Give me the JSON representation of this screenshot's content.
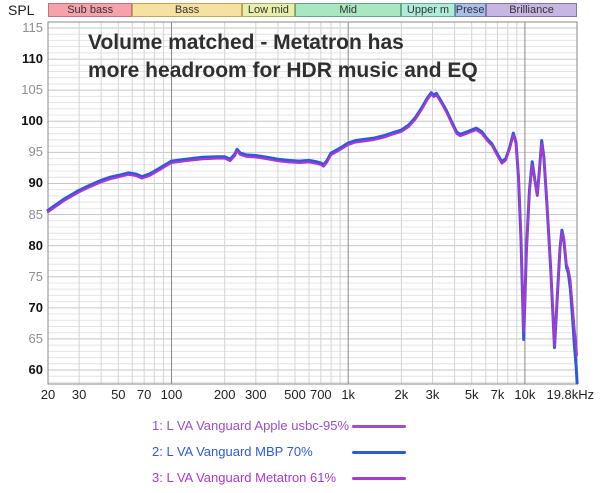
{
  "header": {
    "spl_label": "SPL"
  },
  "title": {
    "line1": "Volume matched - Metatron has",
    "line2": "more headroom for HDR music and EQ"
  },
  "bands": [
    {
      "label": "Sub bass",
      "from_hz": 20,
      "to_hz": 60,
      "fill": "#f6a2ab",
      "border": "#c2737c"
    },
    {
      "label": "Bass",
      "from_hz": 60,
      "to_hz": 250,
      "fill": "#f6e1a3",
      "border": "#c0a75e"
    },
    {
      "label": "Low mid",
      "from_hz": 250,
      "to_hz": 500,
      "fill": "#e8efad",
      "border": "#a6ad62"
    },
    {
      "label": "Mid",
      "from_hz": 500,
      "to_hz": 2000,
      "fill": "#a8e7c0",
      "border": "#61a87e"
    },
    {
      "label": "Upper m",
      "from_hz": 2000,
      "to_hz": 4000,
      "fill": "#aeecd9",
      "border": "#64ab90"
    },
    {
      "label": "Prese",
      "from_hz": 4000,
      "to_hz": 6000,
      "fill": "#a9bfea",
      "border": "#6c82bb"
    },
    {
      "label": "Brilliance",
      "from_hz": 6000,
      "to_hz": 19800,
      "fill": "#c6b6e2",
      "border": "#8673ae"
    }
  ],
  "axes": {
    "y_unit": "dB SPL",
    "y_major_ticks": [
      115,
      110,
      105,
      100,
      95,
      90,
      85,
      80,
      75,
      70,
      65,
      60
    ],
    "x_ticks": [
      {
        "label": "20",
        "f": 20
      },
      {
        "label": "30",
        "f": 30
      },
      {
        "label": "50",
        "f": 50
      },
      {
        "label": "70",
        "f": 70
      },
      {
        "label": "100",
        "f": 100
      },
      {
        "label": "200",
        "f": 200
      },
      {
        "label": "300",
        "f": 300
      },
      {
        "label": "500",
        "f": 500
      },
      {
        "label": "700",
        "f": 700
      },
      {
        "label": "1k",
        "f": 1000
      },
      {
        "label": "2k",
        "f": 2000
      },
      {
        "label": "3k",
        "f": 3000
      },
      {
        "label": "5k",
        "f": 5000
      },
      {
        "label": "7k",
        "f": 7000
      },
      {
        "label": "10k",
        "f": 10000
      },
      {
        "label": "19.8kHz",
        "f": 19800,
        "dx": -7
      }
    ]
  },
  "legend": {
    "items": [
      {
        "label": "1: L VA Vanguard Apple usbc-95%",
        "color": "#9c4ecb"
      },
      {
        "label": "2: L VA Vanguard MBP 70%",
        "color": "#2e5ad9"
      },
      {
        "label": "3: L VA Vanguard Metatron 61%",
        "color": "#aa39d4"
      }
    ]
  },
  "chart_data": {
    "type": "line",
    "x_axis": {
      "scale": "log",
      "min_hz": 20,
      "max_hz": 19800
    },
    "y_axis": {
      "label": "SPL",
      "min_db": 57.9,
      "max_db": 116,
      "major_step_db": 5,
      "minor_step_db": 1
    },
    "grid": "on",
    "legend_position": "bottom",
    "series": [
      {
        "name": "L VA Vanguard Apple usbc-95%",
        "color": "#9a43cd",
        "width": 2.1,
        "z": 2,
        "points": [
          [
            20,
            85.4
          ],
          [
            25,
            87.3
          ],
          [
            30,
            88.6
          ],
          [
            35,
            89.5
          ],
          [
            40,
            90.2
          ],
          [
            45,
            90.7
          ],
          [
            50,
            91.0
          ],
          [
            57,
            91.4
          ],
          [
            63,
            91.2
          ],
          [
            68,
            90.8
          ],
          [
            75,
            91.2
          ],
          [
            85,
            92.1
          ],
          [
            100,
            93.3
          ],
          [
            120,
            93.6
          ],
          [
            150,
            93.9
          ],
          [
            180,
            94.0
          ],
          [
            200,
            94.0
          ],
          [
            215,
            93.6
          ],
          [
            228,
            94.4
          ],
          [
            235,
            95.2
          ],
          [
            245,
            94.6
          ],
          [
            265,
            94.3
          ],
          [
            300,
            94.2
          ],
          [
            350,
            93.9
          ],
          [
            400,
            93.6
          ],
          [
            460,
            93.4
          ],
          [
            530,
            93.3
          ],
          [
            600,
            93.4
          ],
          [
            660,
            93.2
          ],
          [
            700,
            93.0
          ],
          [
            725,
            92.7
          ],
          [
            760,
            93.4
          ],
          [
            800,
            94.6
          ],
          [
            900,
            95.4
          ],
          [
            1000,
            96.2
          ],
          [
            1100,
            96.6
          ],
          [
            1250,
            96.8
          ],
          [
            1400,
            97.0
          ],
          [
            1600,
            97.4
          ],
          [
            1800,
            97.9
          ],
          [
            2000,
            98.3
          ],
          [
            2200,
            99.1
          ],
          [
            2400,
            100.3
          ],
          [
            2600,
            101.8
          ],
          [
            2800,
            103.4
          ],
          [
            2950,
            104.3
          ],
          [
            3050,
            103.9
          ],
          [
            3150,
            104.2
          ],
          [
            3350,
            103.0
          ],
          [
            3600,
            101.4
          ],
          [
            3850,
            99.6
          ],
          [
            4100,
            98.0
          ],
          [
            4300,
            97.6
          ],
          [
            4600,
            97.9
          ],
          [
            5000,
            98.3
          ],
          [
            5300,
            98.6
          ],
          [
            5700,
            98.0
          ],
          [
            6100,
            96.9
          ],
          [
            6500,
            96.1
          ],
          [
            7000,
            94.4
          ],
          [
            7400,
            93.2
          ],
          [
            7800,
            93.7
          ],
          [
            8200,
            95.5
          ],
          [
            8600,
            97.8
          ],
          [
            8900,
            96.3
          ],
          [
            9200,
            91.5
          ],
          [
            9500,
            82.0
          ],
          [
            9850,
            66.2
          ],
          [
            10200,
            79.0
          ],
          [
            10600,
            88.5
          ],
          [
            11000,
            93.0
          ],
          [
            11400,
            90.3
          ],
          [
            11750,
            88.0
          ],
          [
            12100,
            92.0
          ],
          [
            12450,
            96.4
          ],
          [
            12800,
            94.0
          ],
          [
            13300,
            87.0
          ],
          [
            14000,
            76.5
          ],
          [
            14700,
            63.9
          ],
          [
            15300,
            72.5
          ],
          [
            15800,
            79.5
          ],
          [
            16200,
            82.2
          ],
          [
            16600,
            81.2
          ],
          [
            16900,
            79.0
          ],
          [
            17200,
            77.0
          ],
          [
            17600,
            76.3
          ],
          [
            18100,
            74.5
          ],
          [
            18600,
            70.5
          ],
          [
            19100,
            66.5
          ],
          [
            19500,
            64.0
          ],
          [
            19700,
            62.4
          ]
        ]
      },
      {
        "name": "L VA Vanguard MBP 70%",
        "color": "#2e5ad9",
        "width": 3.0,
        "z": 1,
        "points": [
          [
            20,
            85.7
          ],
          [
            25,
            87.6
          ],
          [
            30,
            88.9
          ],
          [
            35,
            89.8
          ],
          [
            40,
            90.5
          ],
          [
            45,
            91.0
          ],
          [
            50,
            91.3
          ],
          [
            57,
            91.7
          ],
          [
            63,
            91.5
          ],
          [
            68,
            91.1
          ],
          [
            75,
            91.5
          ],
          [
            85,
            92.4
          ],
          [
            100,
            93.6
          ],
          [
            120,
            93.9
          ],
          [
            150,
            94.2
          ],
          [
            180,
            94.3
          ],
          [
            200,
            94.3
          ],
          [
            215,
            93.9
          ],
          [
            228,
            94.7
          ],
          [
            235,
            95.5
          ],
          [
            245,
            94.9
          ],
          [
            265,
            94.6
          ],
          [
            300,
            94.5
          ],
          [
            350,
            94.2
          ],
          [
            400,
            93.9
          ],
          [
            460,
            93.7
          ],
          [
            530,
            93.6
          ],
          [
            600,
            93.7
          ],
          [
            660,
            93.5
          ],
          [
            700,
            93.3
          ],
          [
            725,
            93.0
          ],
          [
            760,
            93.7
          ],
          [
            800,
            94.9
          ],
          [
            900,
            95.7
          ],
          [
            1000,
            96.5
          ],
          [
            1100,
            96.9
          ],
          [
            1250,
            97.1
          ],
          [
            1400,
            97.3
          ],
          [
            1600,
            97.7
          ],
          [
            1800,
            98.2
          ],
          [
            2000,
            98.6
          ],
          [
            2200,
            99.4
          ],
          [
            2400,
            100.6
          ],
          [
            2600,
            102.1
          ],
          [
            2800,
            103.7
          ],
          [
            2950,
            104.6
          ],
          [
            3050,
            104.2
          ],
          [
            3150,
            104.5
          ],
          [
            3350,
            103.3
          ],
          [
            3600,
            101.7
          ],
          [
            3850,
            99.9
          ],
          [
            4100,
            98.3
          ],
          [
            4300,
            97.9
          ],
          [
            4600,
            98.2
          ],
          [
            5000,
            98.6
          ],
          [
            5300,
            98.9
          ],
          [
            5700,
            98.3
          ],
          [
            6100,
            97.2
          ],
          [
            6500,
            96.4
          ],
          [
            7000,
            94.7
          ],
          [
            7400,
            93.5
          ],
          [
            7800,
            94.0
          ],
          [
            8200,
            95.8
          ],
          [
            8600,
            98.1
          ],
          [
            8900,
            96.6
          ],
          [
            9200,
            91.0
          ],
          [
            9500,
            81.0
          ],
          [
            9850,
            64.9
          ],
          [
            10200,
            79.2
          ],
          [
            10600,
            88.8
          ],
          [
            11000,
            93.5
          ],
          [
            11400,
            90.4
          ],
          [
            11750,
            88.1
          ],
          [
            12100,
            92.3
          ],
          [
            12450,
            96.9
          ],
          [
            12800,
            94.2
          ],
          [
            13300,
            87.0
          ],
          [
            14000,
            76.3
          ],
          [
            14700,
            63.6
          ],
          [
            15300,
            72.4
          ],
          [
            15800,
            79.6
          ],
          [
            16200,
            82.5
          ],
          [
            16600,
            81.0
          ],
          [
            16900,
            78.7
          ],
          [
            17200,
            76.5
          ],
          [
            17600,
            75.6
          ],
          [
            18100,
            73.0
          ],
          [
            18600,
            68.5
          ],
          [
            19100,
            63.5
          ],
          [
            19500,
            60.5
          ],
          [
            19750,
            57.9
          ]
        ]
      },
      {
        "name": "L VA Vanguard Metatron 61%",
        "color": "#ab36d6",
        "width": 1.6,
        "z": 3,
        "points": [
          [
            20,
            85.4
          ],
          [
            25,
            87.3
          ],
          [
            30,
            88.6
          ],
          [
            35,
            89.5
          ],
          [
            40,
            90.2
          ],
          [
            45,
            90.7
          ],
          [
            50,
            91.0
          ],
          [
            57,
            91.4
          ],
          [
            63,
            91.2
          ],
          [
            68,
            90.8
          ],
          [
            75,
            91.2
          ],
          [
            85,
            92.1
          ],
          [
            100,
            93.3
          ],
          [
            120,
            93.6
          ],
          [
            150,
            93.9
          ],
          [
            180,
            94.0
          ],
          [
            200,
            94.0
          ],
          [
            215,
            93.6
          ],
          [
            228,
            94.4
          ],
          [
            235,
            95.2
          ],
          [
            245,
            94.6
          ],
          [
            265,
            94.3
          ],
          [
            300,
            94.2
          ],
          [
            350,
            93.9
          ],
          [
            400,
            93.6
          ],
          [
            460,
            93.4
          ],
          [
            530,
            93.3
          ],
          [
            600,
            93.4
          ],
          [
            660,
            93.2
          ],
          [
            700,
            93.0
          ],
          [
            725,
            92.7
          ],
          [
            760,
            93.4
          ],
          [
            800,
            94.6
          ],
          [
            900,
            95.4
          ],
          [
            1000,
            96.2
          ],
          [
            1100,
            96.6
          ],
          [
            1250,
            96.8
          ],
          [
            1400,
            97.0
          ],
          [
            1600,
            97.4
          ],
          [
            1800,
            97.9
          ],
          [
            2000,
            98.3
          ],
          [
            2200,
            99.1
          ],
          [
            2400,
            100.3
          ],
          [
            2600,
            101.8
          ],
          [
            2800,
            103.4
          ],
          [
            2950,
            104.3
          ],
          [
            3050,
            103.9
          ],
          [
            3150,
            104.2
          ],
          [
            3350,
            103.0
          ],
          [
            3600,
            101.4
          ],
          [
            3850,
            99.6
          ],
          [
            4100,
            98.0
          ],
          [
            4300,
            97.6
          ],
          [
            4600,
            97.9
          ],
          [
            5000,
            98.3
          ],
          [
            5300,
            98.6
          ],
          [
            5700,
            98.0
          ],
          [
            6100,
            96.9
          ],
          [
            6500,
            96.1
          ],
          [
            7000,
            94.4
          ],
          [
            7400,
            93.2
          ],
          [
            7800,
            93.7
          ],
          [
            8200,
            95.5
          ],
          [
            8600,
            97.8
          ],
          [
            8900,
            96.3
          ],
          [
            9200,
            91.5
          ],
          [
            9500,
            82.0
          ],
          [
            9850,
            66.2
          ],
          [
            10200,
            79.0
          ],
          [
            10600,
            88.5
          ],
          [
            11000,
            93.0
          ],
          [
            11400,
            90.3
          ],
          [
            11750,
            88.0
          ],
          [
            12100,
            92.0
          ],
          [
            12450,
            96.4
          ],
          [
            12800,
            94.0
          ],
          [
            13300,
            87.0
          ],
          [
            14000,
            76.5
          ],
          [
            14700,
            63.9
          ],
          [
            15300,
            72.5
          ],
          [
            15800,
            79.5
          ],
          [
            16200,
            82.2
          ],
          [
            16600,
            81.2
          ],
          [
            16900,
            79.0
          ],
          [
            17200,
            77.0
          ],
          [
            17600,
            76.3
          ],
          [
            18100,
            74.5
          ],
          [
            18600,
            70.5
          ],
          [
            19100,
            66.5
          ],
          [
            19500,
            64.0
          ],
          [
            19700,
            62.4
          ]
        ]
      }
    ]
  }
}
